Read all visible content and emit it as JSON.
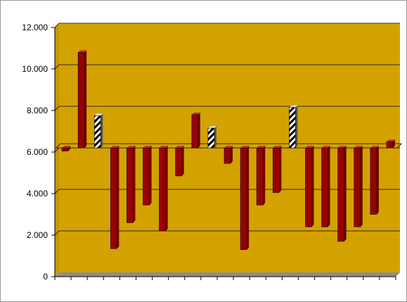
{
  "chart_data": {
    "type": "bar",
    "title": "",
    "xlabel": "",
    "ylabel": "",
    "ylim": [
      0,
      12000
    ],
    "baseline": 6200,
    "grid": true,
    "yticks": [
      {
        "value": 0,
        "label": "0"
      },
      {
        "value": 2000,
        "label": "2.000"
      },
      {
        "value": 4000,
        "label": "4.000"
      },
      {
        "value": 6000,
        "label": "6.000"
      },
      {
        "value": 8000,
        "label": "8.000"
      },
      {
        "value": 10000,
        "label": "10.000"
      },
      {
        "value": 12000,
        "label": "12.000"
      }
    ],
    "values": [
      6050,
      10800,
      7750,
      1350,
      2600,
      3450,
      2200,
      4850,
      7800,
      7150,
      5450,
      1300,
      3450,
      4050,
      8150,
      2400,
      2400,
      1700,
      2400,
      3000,
      6500
    ],
    "patterns": [
      "solid",
      "solid",
      "hatched",
      "solid",
      "solid",
      "solid",
      "solid",
      "solid",
      "solid",
      "hatched",
      "solid",
      "solid",
      "solid",
      "solid",
      "hatched",
      "solid",
      "solid",
      "solid",
      "solid",
      "solid",
      "solid"
    ],
    "colors": {
      "plot_background": "#d4a200",
      "bar_fill": "#990000",
      "bar_side": "#6e0000",
      "bar_top": "#b53a3a",
      "hatch": "#000000",
      "floor": "#8c8c8c"
    }
  }
}
